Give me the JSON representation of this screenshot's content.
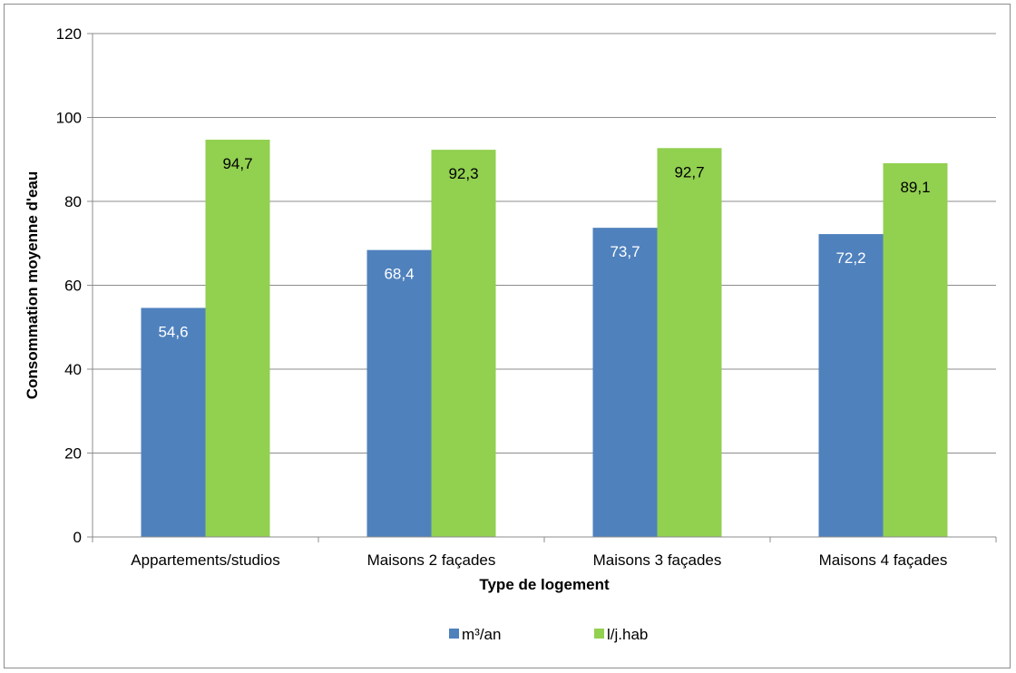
{
  "chart_data": {
    "type": "bar",
    "title": "",
    "xlabel": "Type de logement",
    "ylabel": "Consommation moyenne d'eau",
    "ylim": [
      0,
      120
    ],
    "yticks": [
      0,
      20,
      40,
      60,
      80,
      100,
      120
    ],
    "grid": true,
    "legend_position": "bottom",
    "categories": [
      "Appartements/studios",
      "Maisons 2 façades",
      "Maisons 3 façades",
      "Maisons 4 façades"
    ],
    "series": [
      {
        "name": "m³/an",
        "color": "#4f81bd",
        "label_color": "#ffffff",
        "values": [
          54.6,
          68.4,
          73.7,
          72.2
        ],
        "labels": [
          "54,6",
          "68,4",
          "73,7",
          "72,2"
        ]
      },
      {
        "name": "l/j.hab",
        "color": "#92d050",
        "label_color": "#000000",
        "values": [
          94.7,
          92.3,
          92.7,
          89.1
        ],
        "labels": [
          "94,7",
          "92,3",
          "92,7",
          "89,1"
        ]
      }
    ]
  }
}
